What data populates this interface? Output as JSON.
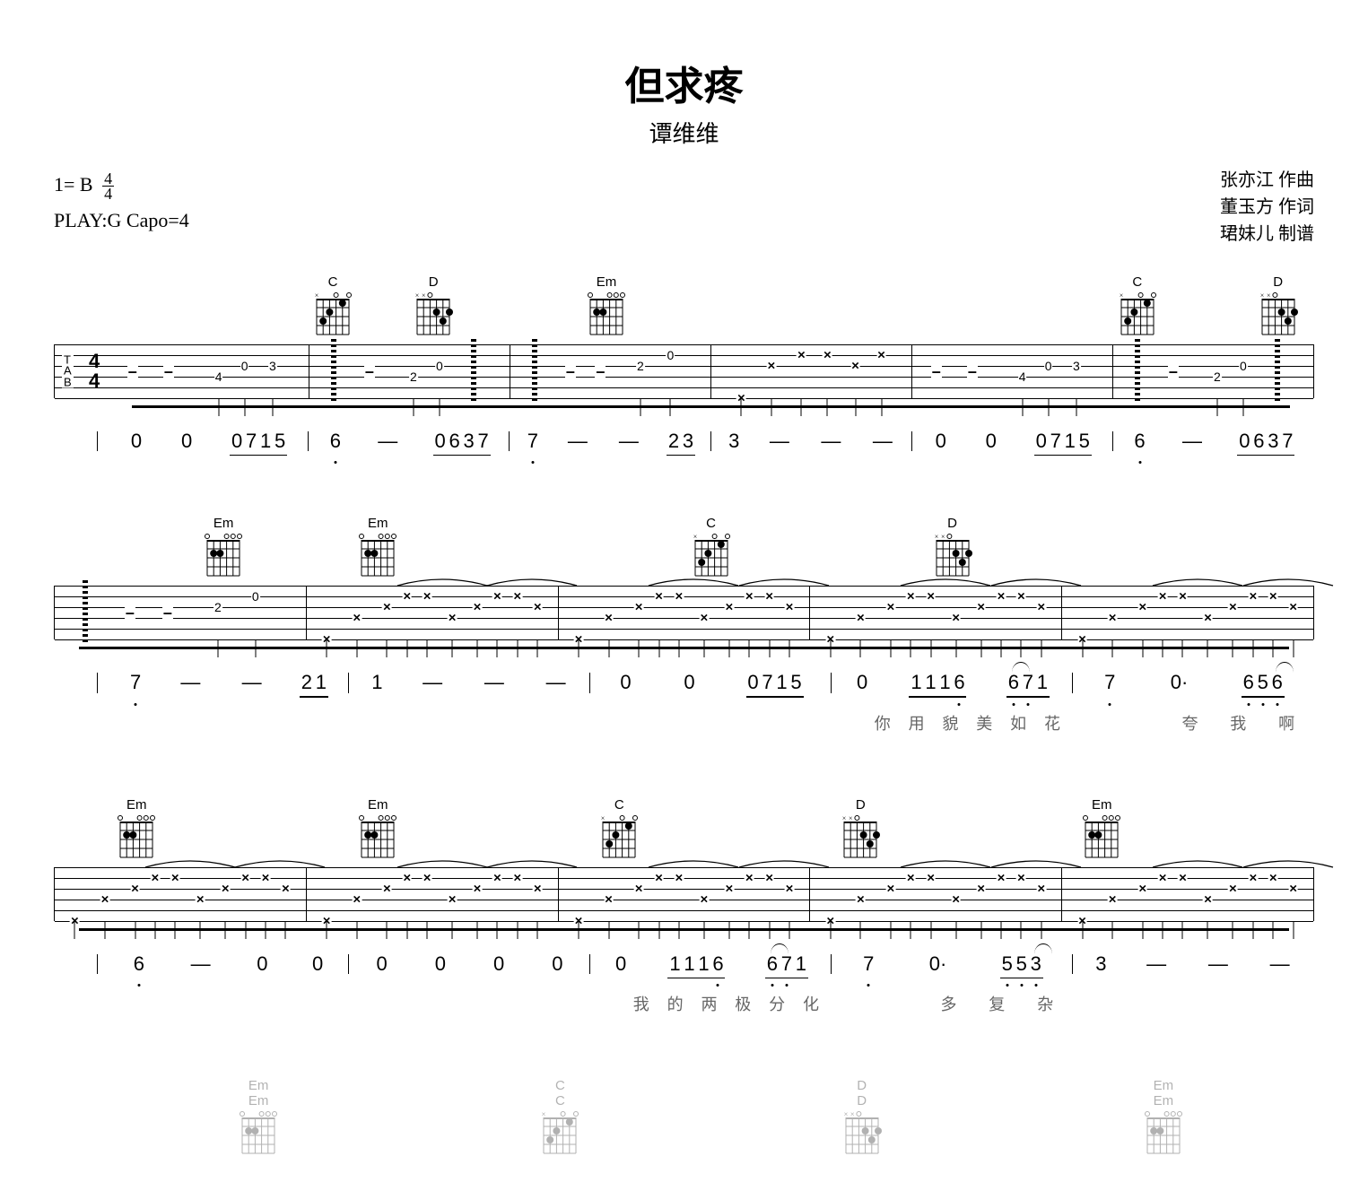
{
  "title": "但求疼",
  "subtitle": "谭维维",
  "key_label": "1= B",
  "time_top": "4",
  "time_bottom": "4",
  "play_label": "PLAY:G Capo=4",
  "credits": [
    "张亦江 作曲",
    "董玉方 作词",
    "珺妹儿 制谱"
  ],
  "colors": {
    "bg": "#ffffff",
    "fg": "#000000",
    "lyric": "#666666"
  },
  "chord_shapes": {
    "C": {
      "name": "C",
      "marks": [
        "x",
        "3",
        "2",
        "0",
        "1",
        "0"
      ],
      "dots": [
        [
          5,
          3
        ],
        [
          4,
          2
        ],
        [
          2,
          1
        ]
      ]
    },
    "D": {
      "name": "D",
      "marks": [
        "x",
        "x",
        "0",
        "2",
        "3",
        "2"
      ],
      "dots": [
        [
          3,
          2
        ],
        [
          2,
          3
        ],
        [
          1,
          2
        ]
      ]
    },
    "Em": {
      "name": "Em",
      "marks": [
        "0",
        "2",
        "2",
        "0",
        "0",
        "0"
      ],
      "dots": [
        [
          5,
          2
        ],
        [
          4,
          2
        ]
      ]
    }
  },
  "systems": [
    {
      "show_clef": true,
      "measures": [
        {
          "chords": [],
          "tab": [
            {
              "t": "rest",
              "x": 12
            },
            {
              "t": "rest",
              "x": 30
            },
            {
              "t": "n",
              "x": 55,
              "s": 4,
              "f": "4"
            },
            {
              "t": "n",
              "x": 68,
              "s": 3,
              "f": "0"
            },
            {
              "t": "n",
              "x": 82,
              "s": 3,
              "f": "3"
            }
          ],
          "jp": [
            "0",
            "0",
            {
              "grp": [
                "0",
                "7",
                "1",
                "5"
              ]
            }
          ]
        },
        {
          "chords": [
            {
              "c": "C",
              "x": 12
            },
            {
              "c": "D",
              "x": 62
            }
          ],
          "tab": [
            {
              "t": "arp",
              "x": 12
            },
            {
              "t": "rest",
              "x": 30
            },
            {
              "t": "n",
              "x": 52,
              "s": 4,
              "f": "2"
            },
            {
              "t": "n",
              "x": 65,
              "s": 3,
              "f": "0"
            },
            {
              "t": "arp",
              "x": 82
            }
          ],
          "jp": [
            {
              "v": "6",
              "low": 1
            },
            "—",
            {
              "grp": [
                "0",
                "6",
                "3",
                "7"
              ]
            }
          ]
        },
        {
          "chords": [
            {
              "c": "Em",
              "x": 48
            }
          ],
          "tab": [
            {
              "t": "arp",
              "x": 12
            },
            {
              "t": "rest",
              "x": 30
            },
            {
              "t": "rest",
              "x": 45
            },
            {
              "t": "n",
              "x": 65,
              "s": 3,
              "f": "2"
            },
            {
              "t": "n",
              "x": 80,
              "s": 2,
              "f": "0"
            }
          ],
          "jp": [
            {
              "v": "7",
              "low": 1
            },
            "—",
            "—",
            {
              "grp": [
                "2",
                "3"
              ]
            }
          ]
        },
        {
          "chords": [],
          "tab": [
            {
              "t": "x",
              "x": 15,
              "s": 6
            },
            {
              "t": "x",
              "x": 30,
              "s": 3
            },
            {
              "t": "x",
              "x": 45,
              "s": 2
            },
            {
              "t": "x",
              "x": 58,
              "s": 2
            },
            {
              "t": "x",
              "x": 72,
              "s": 3
            },
            {
              "t": "x",
              "x": 85,
              "s": 2
            }
          ],
          "jp": [
            "3",
            "—",
            "—",
            "—"
          ]
        },
        {
          "chords": [],
          "tab": [
            {
              "t": "rest",
              "x": 12
            },
            {
              "t": "rest",
              "x": 30
            },
            {
              "t": "n",
              "x": 55,
              "s": 4,
              "f": "4"
            },
            {
              "t": "n",
              "x": 68,
              "s": 3,
              "f": "0"
            },
            {
              "t": "n",
              "x": 82,
              "s": 3,
              "f": "3"
            }
          ],
          "jp": [
            "0",
            "0",
            {
              "grp": [
                "0",
                "7",
                "1",
                "5"
              ]
            }
          ]
        },
        {
          "chords": [
            {
              "c": "C",
              "x": 12
            },
            {
              "c": "D",
              "x": 82
            }
          ],
          "tab": [
            {
              "t": "arp",
              "x": 12
            },
            {
              "t": "rest",
              "x": 30
            },
            {
              "t": "n",
              "x": 52,
              "s": 4,
              "f": "2"
            },
            {
              "t": "n",
              "x": 65,
              "s": 3,
              "f": "0"
            },
            {
              "t": "arp",
              "x": 82
            }
          ],
          "jp": [
            {
              "v": "6",
              "low": 1
            },
            "—",
            {
              "grp": [
                "0",
                "6",
                "3",
                "7"
              ]
            }
          ]
        }
      ]
    },
    {
      "show_clef": false,
      "measures": [
        {
          "chords": [
            {
              "c": "Em",
              "x": 48
            }
          ],
          "tab": [
            {
              "t": "arp",
              "x": 12
            },
            {
              "t": "rest",
              "x": 30
            },
            {
              "t": "rest",
              "x": 45
            },
            {
              "t": "n",
              "x": 65,
              "s": 3,
              "f": "2"
            },
            {
              "t": "n",
              "x": 80,
              "s": 2,
              "f": "0"
            }
          ],
          "jp": [
            {
              "v": "7",
              "low": 1
            },
            "—",
            "—",
            {
              "grp": [
                "2",
                "1"
              ]
            }
          ],
          "ly": [
            "",
            "",
            "",
            ""
          ]
        },
        {
          "chords": [
            {
              "c": "Em",
              "x": 12
            }
          ],
          "tab": "strum",
          "jp": [
            "1",
            "—",
            "—",
            "—"
          ],
          "ly": [
            "",
            "",
            "",
            ""
          ]
        },
        {
          "chords": [
            {
              "c": "C",
              "x": 50
            }
          ],
          "tab": "strum",
          "jp": [
            "0",
            "0",
            {
              "grp": [
                "0",
                "7",
                "1",
                "5"
              ]
            }
          ],
          "ly": [
            "",
            "",
            "",
            ""
          ]
        },
        {
          "chords": [
            {
              "c": "D",
              "x": 50
            }
          ],
          "tab": "strum",
          "jp": [
            "0",
            {
              "grp": [
                {
                  "v": "1",
                  "u": 1
                },
                {
                  "v": "1",
                  "u": 1
                },
                {
                  "v": "1",
                  "u": 1
                },
                {
                  "v": "6",
                  "low": 1,
                  "u": 1
                }
              ]
            },
            {
              "grp": [
                {
                  "v": "6",
                  "low": 1,
                  "tie": 1
                },
                {
                  "v": "7",
                  "low": 1
                },
                {
                  "v": "1"
                }
              ]
            }
          ],
          "ly": [
            "",
            "你",
            "用",
            "貌",
            "美",
            "如",
            "花"
          ]
        },
        {
          "chords": [],
          "tab": "strum",
          "jp": [
            {
              "v": "7",
              "low": 1
            },
            "0·",
            {
              "grp": [
                {
                  "v": "6",
                  "low": 1,
                  "u": 1
                },
                {
                  "v": "5",
                  "low": 1,
                  "u": 1
                },
                {
                  "v": "6",
                  "low": 1,
                  "tie": 1
                }
              ]
            }
          ],
          "ly": [
            "",
            "",
            "夸",
            "我",
            "啊"
          ]
        }
      ]
    },
    {
      "show_clef": false,
      "measures": [
        {
          "chords": [
            {
              "c": "Em",
              "x": 12
            }
          ],
          "tab": "strum",
          "jp": [
            {
              "v": "6",
              "low": 1,
              "tie": 0
            },
            "—",
            "0",
            "0"
          ],
          "ly": [
            "",
            "",
            "",
            ""
          ]
        },
        {
          "chords": [
            {
              "c": "Em",
              "x": 12
            }
          ],
          "tab": "strum",
          "jp": [
            "0",
            "0",
            "0",
            "0"
          ],
          "ly": [
            "",
            "",
            "",
            ""
          ]
        },
        {
          "chords": [
            {
              "c": "C",
              "x": 12
            }
          ],
          "tab": "strum",
          "jp": [
            "0",
            {
              "grp": [
                {
                  "v": "1",
                  "u": 1
                },
                {
                  "v": "1",
                  "u": 1
                },
                {
                  "v": "1",
                  "u": 1
                },
                {
                  "v": "6",
                  "low": 1,
                  "u": 1
                }
              ]
            },
            {
              "grp": [
                {
                  "v": "6",
                  "low": 1,
                  "tie": 1
                },
                {
                  "v": "7",
                  "low": 1
                },
                {
                  "v": "1"
                }
              ]
            }
          ],
          "ly": [
            "",
            "我",
            "的",
            "两",
            "极",
            "分",
            "化"
          ]
        },
        {
          "chords": [
            {
              "c": "D",
              "x": 12
            }
          ],
          "tab": "strum",
          "jp": [
            {
              "v": "7",
              "low": 1
            },
            "0·",
            {
              "grp": [
                {
                  "v": "5",
                  "low": 1,
                  "u": 1
                },
                {
                  "v": "5",
                  "low": 1,
                  "u": 1
                },
                {
                  "v": "3",
                  "low": 1,
                  "tie": 1
                }
              ]
            }
          ],
          "ly": [
            "",
            "",
            "多",
            "复",
            "杂"
          ]
        },
        {
          "chords": [
            {
              "c": "Em",
              "x": 12
            }
          ],
          "tab": "strum",
          "jp": [
            "3",
            "—",
            "—",
            "—"
          ],
          "ly": [
            "",
            "",
            "",
            ""
          ]
        }
      ]
    }
  ],
  "faded": [
    "Em",
    "C",
    "D",
    "Em"
  ]
}
